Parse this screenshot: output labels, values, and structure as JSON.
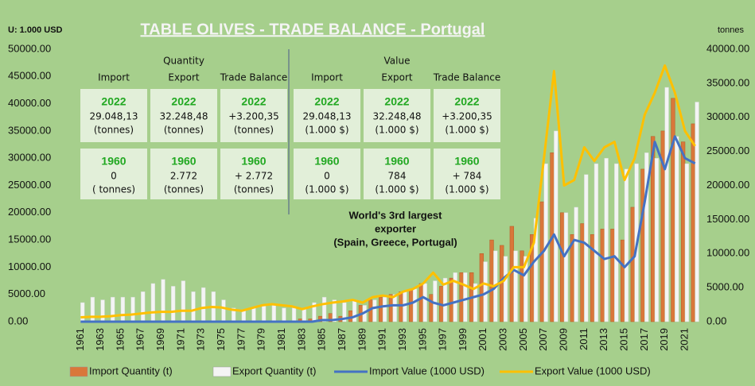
{
  "chart_data": {
    "type": "combo",
    "title": "TABLE OLIVES - TRADE BALANCE - Portugal",
    "ylabel": "U: 1.000 USD",
    "y2label": "tonnes",
    "categories": [
      "1961",
      null,
      "1963",
      null,
      "1965",
      null,
      "1967",
      null,
      "1969",
      null,
      "1971",
      null,
      "1973",
      null,
      "1975",
      null,
      "1977",
      null,
      "1979",
      null,
      "1981",
      null,
      "1983",
      null,
      "1985",
      null,
      "1987",
      null,
      "1989",
      null,
      "1991",
      null,
      "1993",
      null,
      "1995",
      null,
      "1997",
      null,
      "1999",
      null,
      "2001",
      null,
      "2003",
      null,
      "2005",
      null,
      "2007",
      null,
      "2009",
      null,
      "2011",
      null,
      "2013",
      null,
      "2015",
      null,
      "2017",
      null,
      "2019",
      null,
      "2021",
      null
    ],
    "series": [
      {
        "name": "Import Quantity (t)",
        "kind": "bar",
        "axis": "y2",
        "color": "#d9773a",
        "values": [
          0,
          0,
          0,
          0,
          0,
          0,
          0,
          0,
          0,
          0,
          0,
          0,
          0,
          0,
          0,
          0,
          0,
          0,
          0,
          0,
          0,
          0,
          400,
          400,
          800,
          1200,
          800,
          1600,
          2400,
          3200,
          3600,
          4000,
          4400,
          4800,
          5600,
          4000,
          5200,
          6400,
          7200,
          7200,
          10000,
          12000,
          11200,
          14000,
          10400,
          12800,
          17600,
          24800,
          16000,
          12800,
          14400,
          12800,
          13600,
          13600,
          12000,
          16800,
          22400,
          27200,
          28000,
          32800,
          26400,
          29048
        ]
      },
      {
        "name": "Export Quantity (t)",
        "kind": "bar",
        "axis": "y2",
        "color": "#f4f4f4",
        "values": [
          2800,
          3600,
          3200,
          3600,
          3600,
          3600,
          4400,
          5600,
          6200,
          5200,
          6000,
          4400,
          5000,
          4400,
          3200,
          2000,
          1600,
          2000,
          2400,
          2400,
          2000,
          2000,
          2000,
          2800,
          3600,
          3200,
          2800,
          3200,
          2400,
          3200,
          3600,
          4000,
          4400,
          4800,
          5600,
          6000,
          6400,
          7200,
          7200,
          5600,
          8800,
          10400,
          9600,
          10400,
          9600,
          15200,
          23200,
          28000,
          16000,
          16800,
          21600,
          23200,
          24000,
          23200,
          22400,
          23200,
          24800,
          24000,
          34400,
          27200,
          23200,
          32248
        ]
      },
      {
        "name": "Import Value (1000 USD)",
        "kind": "line",
        "color": "#4472c4",
        "values": [
          0,
          0,
          0,
          0,
          0,
          0,
          0,
          0,
          0,
          0,
          0,
          0,
          0,
          0,
          0,
          0,
          0,
          0,
          0,
          0,
          0,
          0,
          0,
          0,
          300,
          300,
          500,
          800,
          1500,
          2500,
          2800,
          3000,
          3000,
          3500,
          4500,
          3500,
          3000,
          3500,
          4000,
          4500,
          5000,
          6000,
          8000,
          9500,
          8500,
          11000,
          13000,
          16000,
          12000,
          15000,
          14500,
          13000,
          11500,
          12000,
          10000,
          12000,
          22000,
          33000,
          28000,
          34000,
          30000,
          29048
        ]
      },
      {
        "name": "Export Value (1000 USD)",
        "kind": "line",
        "color": "#ffc000",
        "values": [
          800,
          900,
          900,
          1000,
          1200,
          1300,
          1500,
          1700,
          1800,
          1800,
          2000,
          2000,
          2500,
          2700,
          2600,
          2200,
          2000,
          2500,
          3000,
          3200,
          3000,
          2800,
          2300,
          2800,
          3200,
          3500,
          3700,
          4000,
          3500,
          4500,
          4800,
          4500,
          5500,
          6000,
          7000,
          9000,
          6800,
          7500,
          6800,
          6000,
          7000,
          6500,
          7500,
          10000,
          10000,
          14500,
          30000,
          46000,
          25000,
          26000,
          32000,
          29500,
          32000,
          33000,
          26000,
          30000,
          38000,
          42000,
          47000,
          42000,
          35000,
          32248
        ]
      }
    ],
    "ylim": [
      0,
      50000
    ],
    "yticks": [
      {
        "value": 0,
        "label": "0.00"
      },
      {
        "value": 5000,
        "label": "5000.00"
      },
      {
        "value": 10000,
        "label": "10000.00"
      },
      {
        "value": 15000,
        "label": "15000.00"
      },
      {
        "value": 20000,
        "label": "20000.00"
      },
      {
        "value": 25000,
        "label": "25000.00"
      },
      {
        "value": 30000,
        "label": "30000.00"
      },
      {
        "value": 35000,
        "label": "35000.00"
      },
      {
        "value": 40000,
        "label": "40000.00"
      },
      {
        "value": 45000,
        "label": "45000.00"
      },
      {
        "value": 50000,
        "label": "50000.00"
      }
    ],
    "y2lim": [
      0,
      40000
    ],
    "y2ticks": [
      {
        "value": 0,
        "label": "0.00"
      },
      {
        "value": 5000,
        "label": "5000.00"
      },
      {
        "value": 10000,
        "label": "10000.00"
      },
      {
        "value": 15000,
        "label": "15000.00"
      },
      {
        "value": 20000,
        "label": "20000.00"
      },
      {
        "value": 25000,
        "label": "25000.00"
      },
      {
        "value": 30000,
        "label": "30000.00"
      },
      {
        "value": 35000,
        "label": "35000.00"
      },
      {
        "value": 40000,
        "label": "40000.00"
      }
    ],
    "annotation": [
      "World's 3rd largest",
      "exporter",
      "(Spain, Greece, Portugal)"
    ],
    "panels": [
      {
        "title": "Quantity",
        "columns": [
          {
            "header": "Import",
            "rows": [
              {
                "year": "2022",
                "value": "29.048,13",
                "unit": "(tonnes)"
              },
              {
                "year": "1960",
                "value": "0",
                "unit": "( tonnes)"
              }
            ]
          },
          {
            "header": "Export",
            "rows": [
              {
                "year": "2022",
                "value": "32.248,48",
                "unit": "(tonnes)"
              },
              {
                "year": "1960",
                "value": "2.772",
                "unit": "(tonnes)"
              }
            ]
          },
          {
            "header": "Trade Balance",
            "rows": [
              {
                "year": "2022",
                "value": "+3.200,35",
                "unit": "(tonnes)"
              },
              {
                "year": "1960",
                "value": "+ 2.772",
                "unit": "(tonnes)"
              }
            ]
          }
        ]
      },
      {
        "title": "Value",
        "columns": [
          {
            "header": "Import",
            "rows": [
              {
                "year": "2022",
                "value": "29.048,13",
                "unit": "(1.000 $)"
              },
              {
                "year": "1960",
                "value": "0",
                "unit": "(1.000 $)"
              }
            ]
          },
          {
            "header": "Export",
            "rows": [
              {
                "year": "2022",
                "value": "32.248,48",
                "unit": "(1.000 $)"
              },
              {
                "year": "1960",
                "value": "784",
                "unit": "(1.000 $)"
              }
            ]
          },
          {
            "header": "Trade Balance",
            "rows": [
              {
                "year": "2022",
                "value": "+3.200,35",
                "unit": "(1.000 $)"
              },
              {
                "year": "1960",
                "value": "+ 784",
                "unit": "(1.000 $)"
              }
            ]
          }
        ]
      }
    ]
  }
}
